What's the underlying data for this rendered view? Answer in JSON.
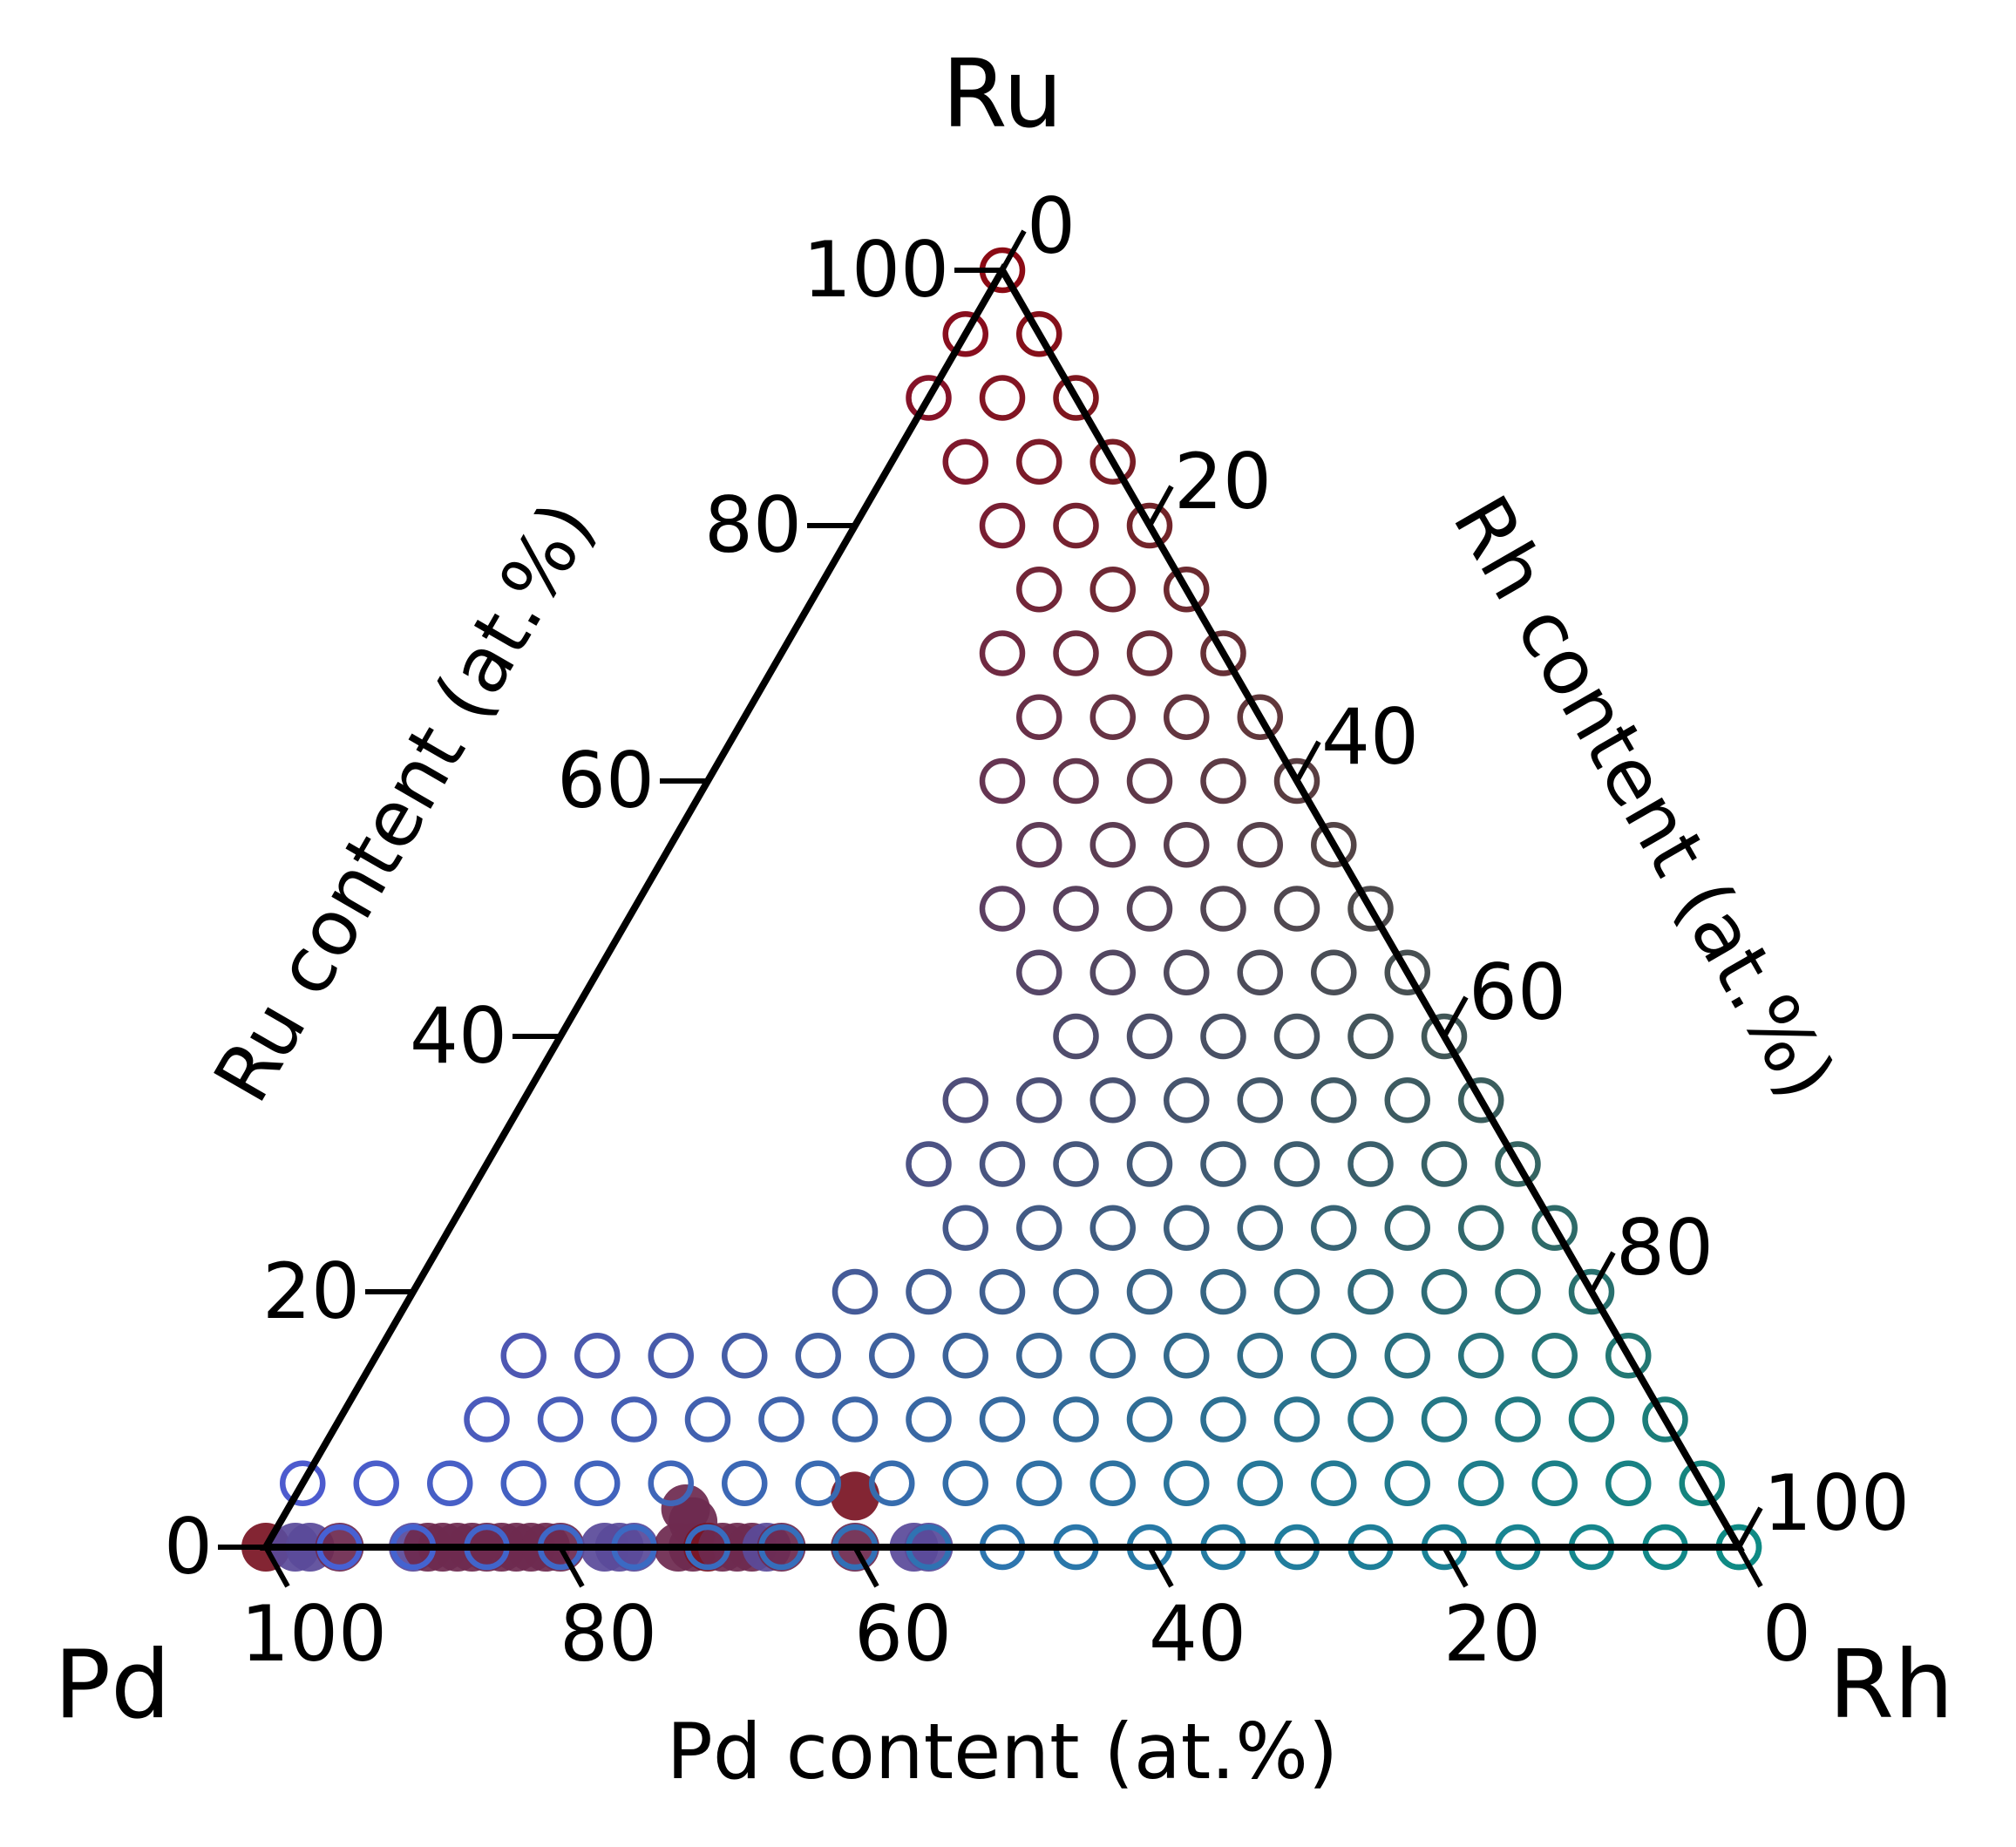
{
  "chart_data": {
    "type": "scatter",
    "subtype": "ternary",
    "title": "",
    "corners": {
      "top": "Ru",
      "left": "Pd",
      "right": "Rh"
    },
    "axes": {
      "left": {
        "label": "Ru content (at.%)",
        "ticks": [
          "0",
          "20",
          "40",
          "60",
          "80",
          "100"
        ],
        "range": [
          0,
          100
        ]
      },
      "right": {
        "label": "Rh content (at.%)",
        "ticks": [
          "0",
          "20",
          "40",
          "60",
          "80",
          "100"
        ],
        "range": [
          0,
          100
        ]
      },
      "bottom": {
        "label": "Pd content (at.%)",
        "ticks": [
          "100",
          "80",
          "60",
          "40",
          "20",
          "0"
        ],
        "range": [
          100,
          0
        ]
      }
    },
    "grid": false,
    "legend": "none",
    "colors": {
      "ru_rich": "#8b0a14",
      "pd_rich": "#4a5fd8",
      "rh_rich": "#0f8a84",
      "axis": "#000000"
    },
    "series": [
      {
        "marker": "open-circle",
        "grid_step_percent": 5,
        "points_by_ru_row": [
          {
            "ru": 100,
            "pd_min": 0,
            "pd_max": 0
          },
          {
            "ru": 95,
            "pd_min": 0,
            "pd_max": 5
          },
          {
            "ru": 90,
            "pd_min": 0,
            "pd_max": 10
          },
          {
            "ru": 85,
            "pd_min": 0,
            "pd_max": 10
          },
          {
            "ru": 80,
            "pd_min": 0,
            "pd_max": 10
          },
          {
            "ru": 75,
            "pd_min": 0,
            "pd_max": 10
          },
          {
            "ru": 70,
            "pd_min": 0,
            "pd_max": 15
          },
          {
            "ru": 65,
            "pd_min": 0,
            "pd_max": 15
          },
          {
            "ru": 60,
            "pd_min": 0,
            "pd_max": 20
          },
          {
            "ru": 55,
            "pd_min": 0,
            "pd_max": 20
          },
          {
            "ru": 50,
            "pd_min": 0,
            "pd_max": 25
          },
          {
            "ru": 45,
            "pd_min": 0,
            "pd_max": 25
          },
          {
            "ru": 40,
            "pd_min": 0,
            "pd_max": 25
          },
          {
            "ru": 35,
            "pd_min": 0,
            "pd_max": 35
          },
          {
            "ru": 30,
            "pd_min": 0,
            "pd_max": 40
          },
          {
            "ru": 25,
            "pd_min": 0,
            "pd_max": 40
          },
          {
            "ru": 20,
            "pd_min": 0,
            "pd_max": 50
          },
          {
            "ru": 15,
            "pd_min": 0,
            "pd_max": 75
          },
          {
            "ru": 10,
            "pd_min": 0,
            "pd_max": 80
          },
          {
            "ru": 5,
            "pd_min": 0,
            "pd_max": 95
          },
          {
            "ru": 0,
            "pd_min": 0,
            "pd_max": 0
          }
        ],
        "extra_points": [
          {
            "ru": 0,
            "pd": 95
          },
          {
            "ru": 0,
            "pd": 90
          },
          {
            "ru": 0,
            "pd": 85
          },
          {
            "ru": 0,
            "pd": 80
          },
          {
            "ru": 0,
            "pd": 75
          },
          {
            "ru": 0,
            "pd": 70
          },
          {
            "ru": 0,
            "pd": 65
          },
          {
            "ru": 0,
            "pd": 60
          },
          {
            "ru": 0,
            "pd": 55
          },
          {
            "ru": 0,
            "pd": 50
          },
          {
            "ru": 0,
            "pd": 45
          },
          {
            "ru": 0,
            "pd": 40
          },
          {
            "ru": 0,
            "pd": 35
          },
          {
            "ru": 0,
            "pd": 30
          },
          {
            "ru": 0,
            "pd": 25
          },
          {
            "ru": 0,
            "pd": 20
          },
          {
            "ru": 0,
            "pd": 15
          },
          {
            "ru": 0,
            "pd": 10
          },
          {
            "ru": 0,
            "pd": 5
          },
          {
            "ru": 0,
            "pd": 0
          }
        ]
      },
      {
        "marker": "filled-circle",
        "points": [
          {
            "ru": 0,
            "pd": 100,
            "color": "#7a1424"
          },
          {
            "ru": 0,
            "pd": 98,
            "color": "#5a4a9a"
          },
          {
            "ru": 0,
            "pd": 97,
            "color": "#5a4a9a"
          },
          {
            "ru": 0,
            "pd": 95,
            "color": "#6e2a50"
          },
          {
            "ru": 0,
            "pd": 90,
            "color": "#5a4a9a"
          },
          {
            "ru": 0,
            "pd": 89,
            "color": "#6e2a50"
          },
          {
            "ru": 0,
            "pd": 88,
            "color": "#6e2a50"
          },
          {
            "ru": 0,
            "pd": 87,
            "color": "#6e2a50"
          },
          {
            "ru": 0,
            "pd": 86,
            "color": "#6e2a50"
          },
          {
            "ru": 0,
            "pd": 85,
            "color": "#6e2a50"
          },
          {
            "ru": 0,
            "pd": 84,
            "color": "#6e2a50"
          },
          {
            "ru": 0,
            "pd": 83,
            "color": "#6e2a50"
          },
          {
            "ru": 0,
            "pd": 82,
            "color": "#6e2a50"
          },
          {
            "ru": 0,
            "pd": 81,
            "color": "#6e2a50"
          },
          {
            "ru": 0,
            "pd": 80,
            "color": "#6e2a50"
          },
          {
            "ru": 0,
            "pd": 77,
            "color": "#5a4a9a"
          },
          {
            "ru": 0,
            "pd": 76,
            "color": "#5a4a9a"
          },
          {
            "ru": 0,
            "pd": 75,
            "color": "#5a4a9a"
          },
          {
            "ru": 0,
            "pd": 72,
            "color": "#6e2a50"
          },
          {
            "ru": 0,
            "pd": 71,
            "color": "#6e2a50"
          },
          {
            "ru": 2,
            "pd": 70,
            "color": "#6e2a50"
          },
          {
            "ru": 3,
            "pd": 70,
            "color": "#6e2a50"
          },
          {
            "ru": 0,
            "pd": 70,
            "color": "#7a1424"
          },
          {
            "ru": 0,
            "pd": 69,
            "color": "#6e2a50"
          },
          {
            "ru": 0,
            "pd": 68,
            "color": "#6e2a50"
          },
          {
            "ru": 0,
            "pd": 67,
            "color": "#6e2a50"
          },
          {
            "ru": 0,
            "pd": 66,
            "color": "#5a4a9a"
          },
          {
            "ru": 0,
            "pd": 65,
            "color": "#6e2a50"
          },
          {
            "ru": 0,
            "pd": 60,
            "color": "#6e2a50"
          },
          {
            "ru": 4,
            "pd": 58,
            "color": "#7a1424"
          },
          {
            "ru": 0,
            "pd": 56,
            "color": "#5a4a9a"
          },
          {
            "ru": 0,
            "pd": 55,
            "color": "#5a4a9a"
          }
        ]
      }
    ]
  }
}
